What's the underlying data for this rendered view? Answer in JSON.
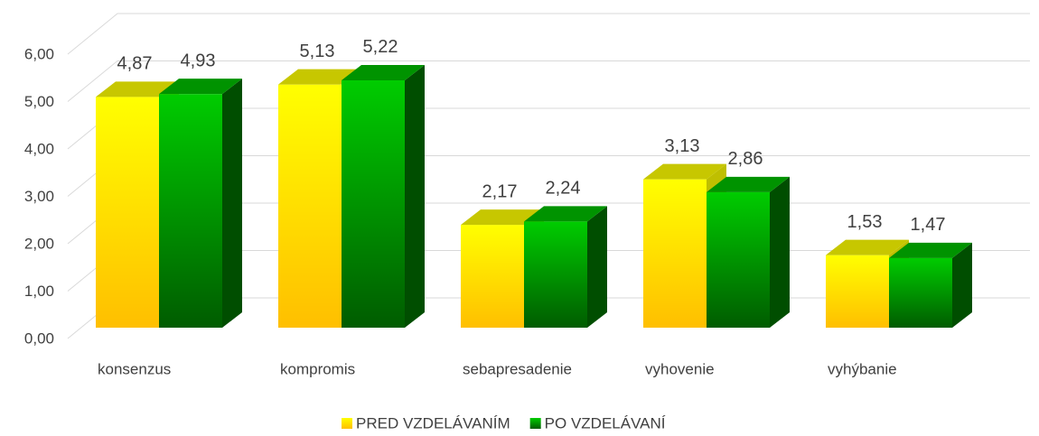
{
  "chart_data": {
    "type": "bar3d",
    "categories": [
      "konsenzus",
      "kompromis",
      "sebapresadenie",
      "vyhovenie",
      "vyhýbanie"
    ],
    "series": [
      {
        "name": "PRED VZDELÁVANÍM",
        "color": "#ffff00",
        "values": [
          4.87,
          5.13,
          2.17,
          3.13,
          1.53
        ],
        "value_labels": [
          "4,87",
          "5,13",
          "2,17",
          "3,13",
          "1,53"
        ]
      },
      {
        "name": "PO VZDELÁVANÍ",
        "color": "#00cc00",
        "values": [
          4.93,
          5.22,
          2.24,
          2.86,
          1.47
        ],
        "value_labels": [
          "4,93",
          "5,22",
          "2,24",
          "2,86",
          "1,47"
        ]
      }
    ],
    "ylim": [
      0,
      6
    ],
    "yticks": [
      {
        "value": 0,
        "label": "0,00"
      },
      {
        "value": 1,
        "label": "1,00"
      },
      {
        "value": 2,
        "label": "2,00"
      },
      {
        "value": 3,
        "label": "3,00"
      },
      {
        "value": 4,
        "label": "4,00"
      },
      {
        "value": 5,
        "label": "5,00"
      },
      {
        "value": 6,
        "label": "6,00"
      }
    ],
    "grid": true,
    "legend": "bottom"
  }
}
